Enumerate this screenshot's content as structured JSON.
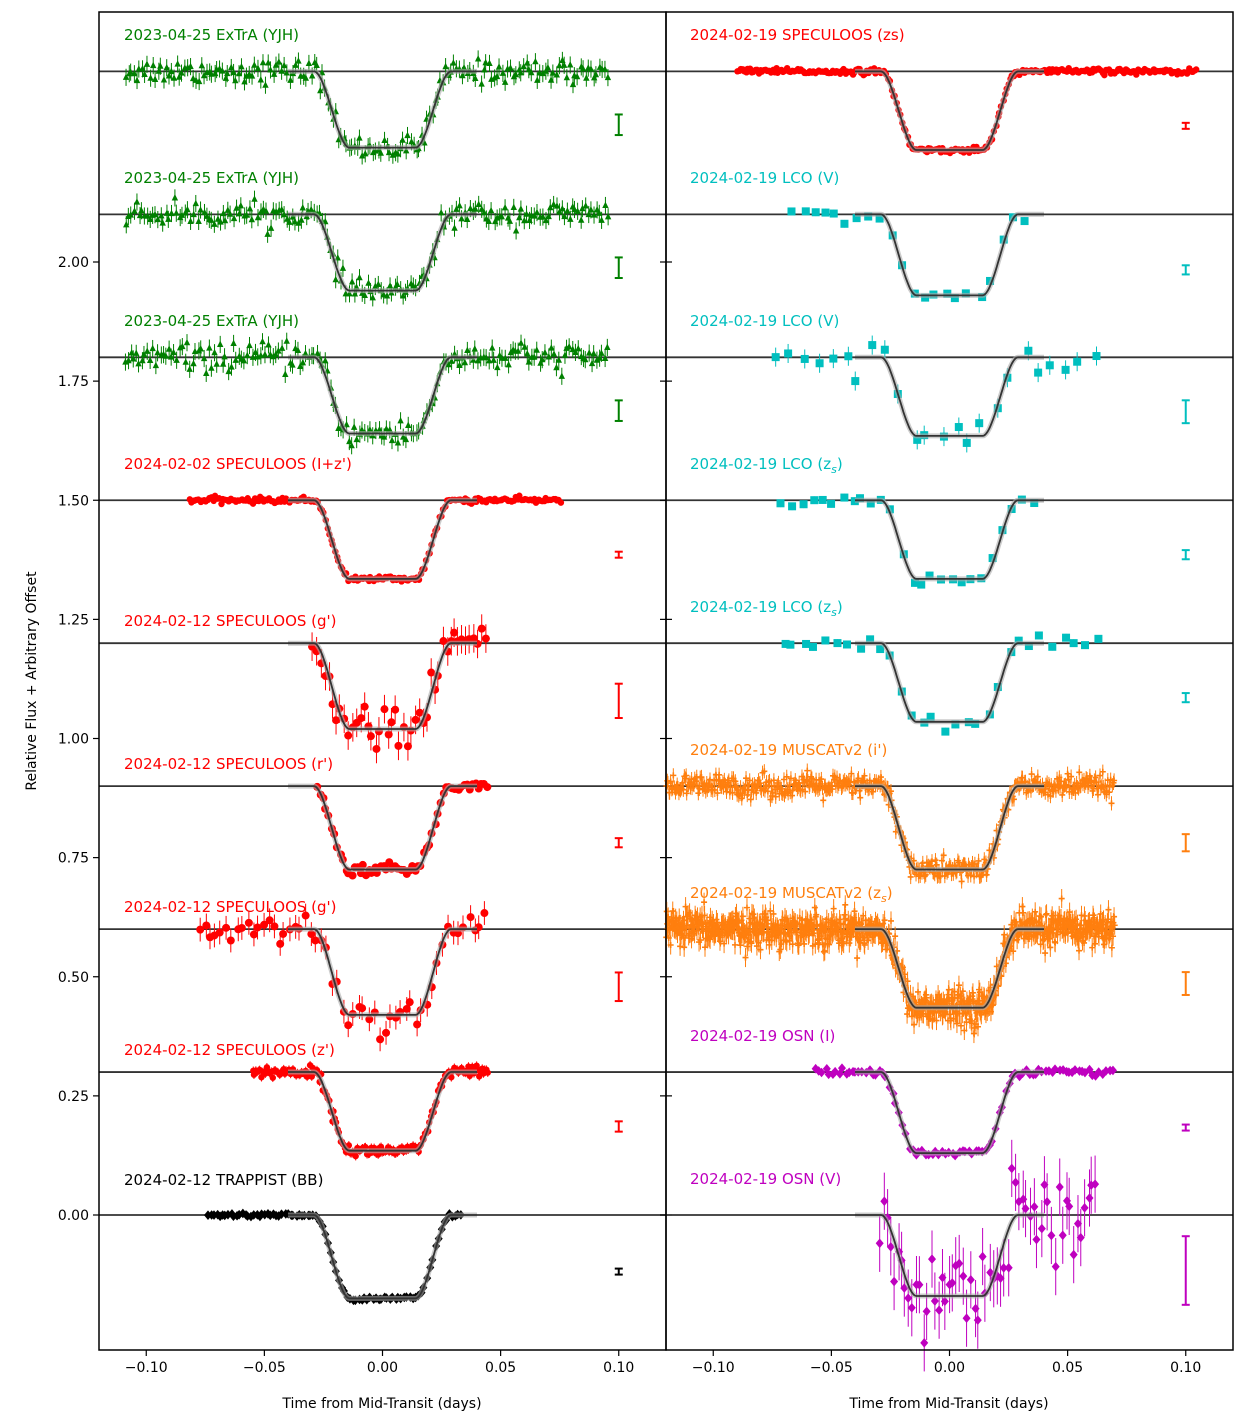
{
  "chart_data": {
    "type": "scatter",
    "ylabel": "Relative Flux + Arbitrary Offset",
    "panels": [
      {
        "xlabel": "Time from Mid-Transit (days)",
        "xlim": [
          -0.12,
          0.12
        ],
        "xticks": [
          -0.1,
          -0.05,
          0.0,
          0.05,
          0.1
        ],
        "xtick_labels": [
          "−0.10",
          "−0.05",
          "0.00",
          "0.05",
          "0.10"
        ],
        "ylim": [
          -0.38,
          2.6
        ],
        "yticks": [
          0.0,
          0.25,
          0.5,
          0.75,
          1.0,
          1.25,
          1.5,
          1.75,
          2.0
        ],
        "ytick_labels": [
          "0.00",
          "0.25",
          "0.50",
          "0.75",
          "1.00",
          "1.25",
          "1.50",
          "1.75",
          "2.00"
        ],
        "series": [
          {
            "name": "2023-04-25  ExTrA (YJH)",
            "color": "#008000",
            "marker": "triangle",
            "offset": 2.4,
            "depth": 0.16,
            "t1": 0.029,
            "t2": 0.014,
            "x_range": [
              -0.109,
              0.096
            ],
            "n": 180,
            "scatter": 0.012,
            "errbar": 0.018
          },
          {
            "name": "2023-04-25  ExTrA (YJH)",
            "color": "#008000",
            "marker": "triangle",
            "offset": 2.1,
            "depth": 0.16,
            "t1": 0.029,
            "t2": 0.014,
            "x_range": [
              -0.109,
              0.096
            ],
            "n": 180,
            "scatter": 0.012,
            "errbar": 0.018
          },
          {
            "name": "2023-04-25  ExTrA (YJH)",
            "color": "#008000",
            "marker": "triangle",
            "offset": 1.8,
            "depth": 0.16,
            "t1": 0.029,
            "t2": 0.014,
            "x_range": [
              -0.109,
              0.096
            ],
            "n": 180,
            "scatter": 0.014,
            "errbar": 0.018
          },
          {
            "name": "2024-02-02 SPECULOOS (I+z')",
            "color": "#ff0000",
            "marker": "circle",
            "offset": 1.5,
            "depth": 0.165,
            "t1": 0.029,
            "t2": 0.014,
            "x_range": [
              -0.082,
              0.076
            ],
            "n": 200,
            "scatter": 0.003,
            "errbar": 0.004
          },
          {
            "name": "2024-02-12 SPECULOOS (g')",
            "color": "#ff0000",
            "marker": "circle",
            "offset": 1.2,
            "depth": 0.18,
            "t1": 0.029,
            "t2": 0.014,
            "x_range": [
              -0.03,
              0.045
            ],
            "n": 45,
            "scatter": 0.02,
            "errbar": 0.03
          },
          {
            "name": "2024-02-12 SPECULOOS (r')",
            "color": "#ff0000",
            "marker": "circle",
            "offset": 0.9,
            "depth": 0.175,
            "t1": 0.029,
            "t2": 0.014,
            "x_range": [
              -0.028,
              0.045
            ],
            "n": 60,
            "scatter": 0.006,
            "errbar": 0.008
          },
          {
            "name": "2024-02-12 SPECULOOS (g')",
            "color": "#ff0000",
            "marker": "circle",
            "offset": 0.6,
            "depth": 0.18,
            "t1": 0.029,
            "t2": 0.014,
            "x_range": [
              -0.078,
              0.045
            ],
            "n": 55,
            "scatter": 0.018,
            "errbar": 0.025
          },
          {
            "name": "2024-02-12 SPECULOOS (z')",
            "color": "#ff0000",
            "marker": "circle",
            "offset": 0.3,
            "depth": 0.165,
            "t1": 0.029,
            "t2": 0.014,
            "x_range": [
              -0.055,
              0.045
            ],
            "n": 170,
            "scatter": 0.006,
            "errbar": 0.009
          },
          {
            "name": "2024-02-12 TRAPPIST (BB)",
            "color": "#000000",
            "marker": "diamond",
            "offset": 0.0,
            "depth": 0.175,
            "t1": 0.029,
            "t2": 0.014,
            "x_range": [
              -0.074,
              0.034
            ],
            "n": 90,
            "scatter": 0.002,
            "errbar": 0.003
          }
        ]
      },
      {
        "xlabel": "Time from Mid-Transit (days)",
        "xlim": [
          -0.12,
          0.12
        ],
        "xticks": [
          -0.1,
          -0.05,
          0.0,
          0.05,
          0.1
        ],
        "xtick_labels": [
          "−0.10",
          "−0.05",
          "0.00",
          "0.05",
          "0.10"
        ],
        "ylim": [
          -0.38,
          2.6
        ],
        "series": [
          {
            "name": "2024-02-19 SPECULOOS (zs)",
            "color": "#ff0000",
            "marker": "circle",
            "offset": 2.4,
            "depth": 0.165,
            "t1": 0.029,
            "t2": 0.014,
            "x_range": [
              -0.09,
              0.105
            ],
            "n": 260,
            "scatter": 0.003,
            "errbar": 0.004
          },
          {
            "name": "2024-02-19 LCO (V)",
            "color": "#00bfbf",
            "marker": "square",
            "offset": 2.1,
            "depth": 0.17,
            "t1": 0.029,
            "t2": 0.014,
            "x_range": [
              -0.068,
              0.035
            ],
            "n": 22,
            "scatter": 0.007,
            "errbar": 0.008
          },
          {
            "name": "2024-02-19 LCO (V)",
            "color": "#00bfbf",
            "marker": "square",
            "offset": 1.8,
            "depth": 0.165,
            "t1": 0.029,
            "t2": 0.014,
            "x_range": [
              -0.075,
              0.065
            ],
            "n": 24,
            "scatter": 0.015,
            "errbar": 0.02
          },
          {
            "name": "2024-02-19 LCO (zs)",
            "color": "#00bfbf",
            "marker": "square",
            "offset": 1.5,
            "depth": 0.165,
            "t1": 0.029,
            "t2": 0.014,
            "x_range": [
              -0.072,
              0.038
            ],
            "n": 26,
            "scatter": 0.006,
            "errbar": 0.008
          },
          {
            "name": "2024-02-19 LCO (zs)",
            "color": "#00bfbf",
            "marker": "square",
            "offset": 1.2,
            "depth": 0.165,
            "t1": 0.029,
            "t2": 0.014,
            "x_range": [
              -0.072,
              0.065
            ],
            "n": 30,
            "scatter": 0.007,
            "errbar": 0.008
          },
          {
            "name": "2024-02-19 MUSCATv2 (i')",
            "color": "#ff7f0e",
            "marker": "plus",
            "offset": 0.9,
            "depth": 0.175,
            "t1": 0.029,
            "t2": 0.014,
            "x_range": [
              -0.12,
              0.07
            ],
            "n": 500,
            "scatter": 0.012,
            "errbar": 0.015
          },
          {
            "name": "2024-02-19 MUSCATv2 (zs)",
            "color": "#ff7f0e",
            "marker": "plus",
            "offset": 0.6,
            "depth": 0.165,
            "t1": 0.029,
            "t2": 0.014,
            "x_range": [
              -0.12,
              0.07
            ],
            "n": 900,
            "scatter": 0.018,
            "errbar": 0.02
          },
          {
            "name": "2024-02-19 OSN (I)",
            "color": "#bf00bf",
            "marker": "diamond",
            "offset": 0.3,
            "depth": 0.17,
            "t1": 0.029,
            "t2": 0.014,
            "x_range": [
              -0.057,
              0.07
            ],
            "n": 90,
            "scatter": 0.004,
            "errbar": 0.005
          },
          {
            "name": "2024-02-19 OSN (V)",
            "color": "#bf00bf",
            "marker": "diamond",
            "offset": 0.0,
            "depth": 0.17,
            "t1": 0.029,
            "t2": 0.014,
            "x_range": [
              -0.03,
              0.063
            ],
            "n": 60,
            "scatter": 0.045,
            "errbar": 0.06
          }
        ]
      }
    ]
  },
  "labels": {
    "left": [
      "2023-04-25  ExTrA (YJH)",
      "2023-04-25  ExTrA (YJH)",
      "2023-04-25  ExTrA (YJH)",
      "2024-02-02 SPECULOOS (I+z')",
      "2024-02-12 SPECULOOS (g')",
      "2024-02-12 SPECULOOS (r')",
      "2024-02-12 SPECULOOS (g')",
      "2024-02-12 SPECULOOS (z')",
      "2024-02-12 TRAPPIST (BB)"
    ],
    "right_plain": [
      "2024-02-19 SPECULOOS (zs)",
      "2024-02-19 LCO (V)",
      "2024-02-19 LCO (V)"
    ],
    "right_sub": [
      {
        "prefix": "2024-02-19 LCO (z",
        "sub": "s",
        "suffix": ")"
      },
      {
        "prefix": "2024-02-19 LCO (z",
        "sub": "s",
        "suffix": ")"
      }
    ],
    "right_plain2": [
      "2024-02-19 MUSCATv2 (i')"
    ],
    "right_sub2": [
      {
        "prefix": "2024-02-19 MUSCATv2 (z",
        "sub": "s",
        "suffix": ")"
      }
    ],
    "right_plain3": [
      "2024-02-19 OSN (I)",
      "2024-02-19 OSN (V)"
    ]
  },
  "colors": {
    "extra": "#008000",
    "speculoos": "#ff0000",
    "trappist": "#000000",
    "lco": "#00bfbf",
    "muscat": "#ff7f0e",
    "osn": "#bf00bf",
    "model": "#333333"
  }
}
